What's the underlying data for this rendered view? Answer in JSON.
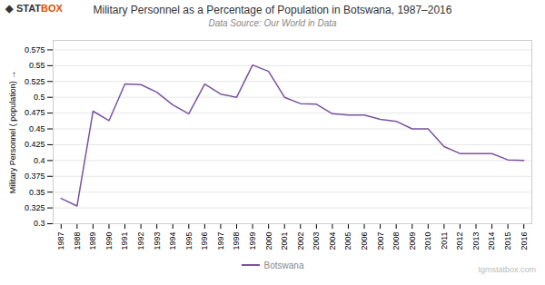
{
  "chart_data": {
    "type": "line",
    "title": "Military Personnel as a Percentage of Population in Botswana, 1987–2016",
    "subtitle": "Data Source: Our World in Data",
    "y_label": "Military Personnel ( population)",
    "x": [
      1987,
      1988,
      1989,
      1990,
      1991,
      1992,
      1993,
      1994,
      1995,
      1996,
      1997,
      1998,
      1999,
      2000,
      2001,
      2002,
      2003,
      2004,
      2005,
      2006,
      2007,
      2008,
      2009,
      2010,
      2011,
      2012,
      2013,
      2014,
      2015,
      2016
    ],
    "series": [
      {
        "name": "Botswana",
        "color": "#7B52A0",
        "values": [
          0.34,
          0.328,
          0.478,
          0.463,
          0.521,
          0.52,
          0.508,
          0.488,
          0.474,
          0.521,
          0.505,
          0.5,
          0.551,
          0.541,
          0.5,
          0.49,
          0.489,
          0.474,
          0.472,
          0.472,
          0.465,
          0.462,
          0.45,
          0.45,
          0.422,
          0.411,
          0.411,
          0.411,
          0.401,
          0.4
        ]
      }
    ],
    "xlim": [
      1986.5,
      2016.5
    ],
    "xticks": [
      1987,
      1988,
      1989,
      1990,
      1991,
      1992,
      1993,
      1994,
      1995,
      1996,
      1997,
      1998,
      1999,
      2000,
      2001,
      2002,
      2003,
      2004,
      2005,
      2006,
      2007,
      2008,
      2009,
      2010,
      2011,
      2012,
      2013,
      2014,
      2015,
      2016
    ],
    "ylim": [
      0.3,
      0.59
    ],
    "yticks": [
      0.3,
      0.325,
      0.35,
      0.375,
      0.4,
      0.425,
      0.45,
      0.475,
      0.5,
      0.525,
      0.55,
      0.575
    ],
    "grid": true,
    "legend": "bottom",
    "annotations": [
      {
        "text": "◆",
        "color": "#333333"
      },
      {
        "text": "STAT",
        "color": "#333333"
      },
      {
        "text": "BOX",
        "color": "#e05000"
      },
      {
        "text": "tgmstatbox.com",
        "color": "#bbbbbb"
      }
    ]
  }
}
